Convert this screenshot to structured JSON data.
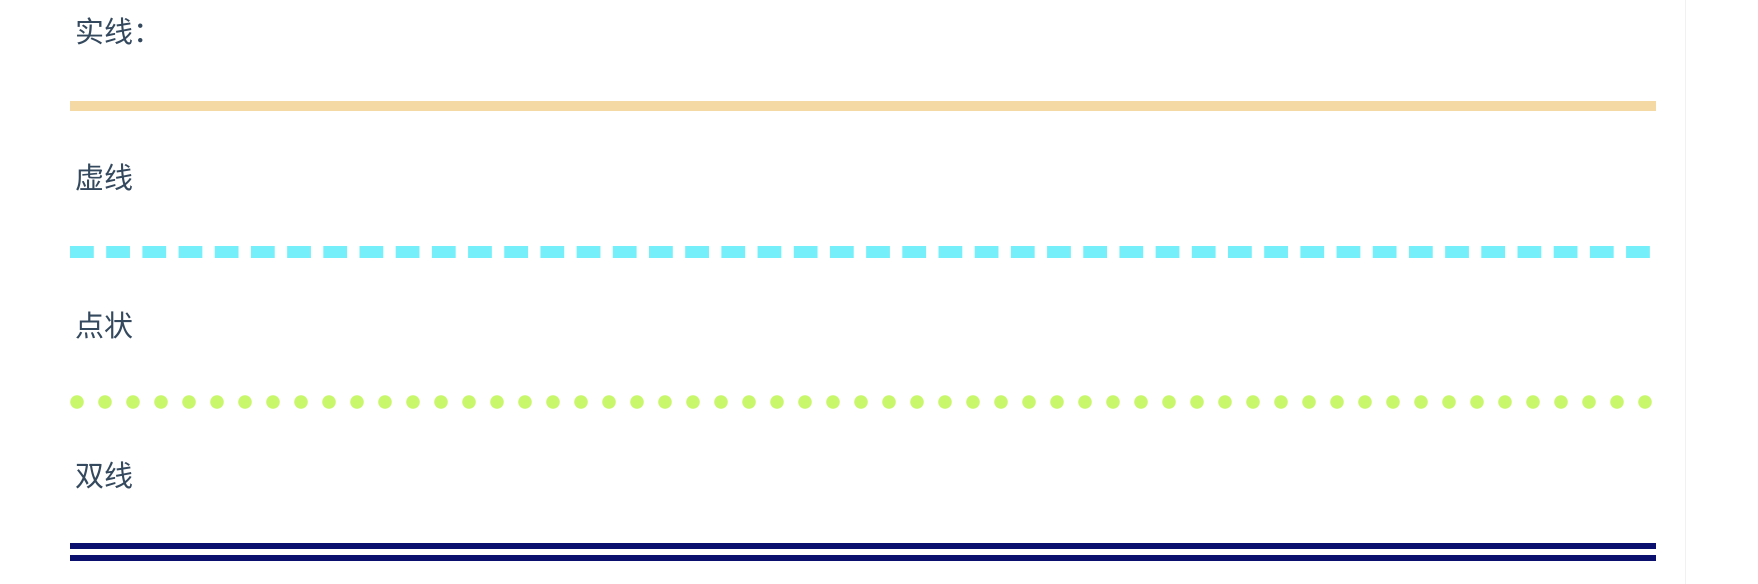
{
  "sections": {
    "solid": {
      "label": "实线：",
      "color": "#f5d9a5",
      "style": "solid"
    },
    "dashed": {
      "label": "虚线",
      "color": "#75f0fa",
      "style": "dashed"
    },
    "dotted": {
      "label": "点状",
      "color": "#c8f76c",
      "style": "dotted"
    },
    "double": {
      "label": "双线",
      "color": "#0b0f6e",
      "style": "double"
    }
  }
}
